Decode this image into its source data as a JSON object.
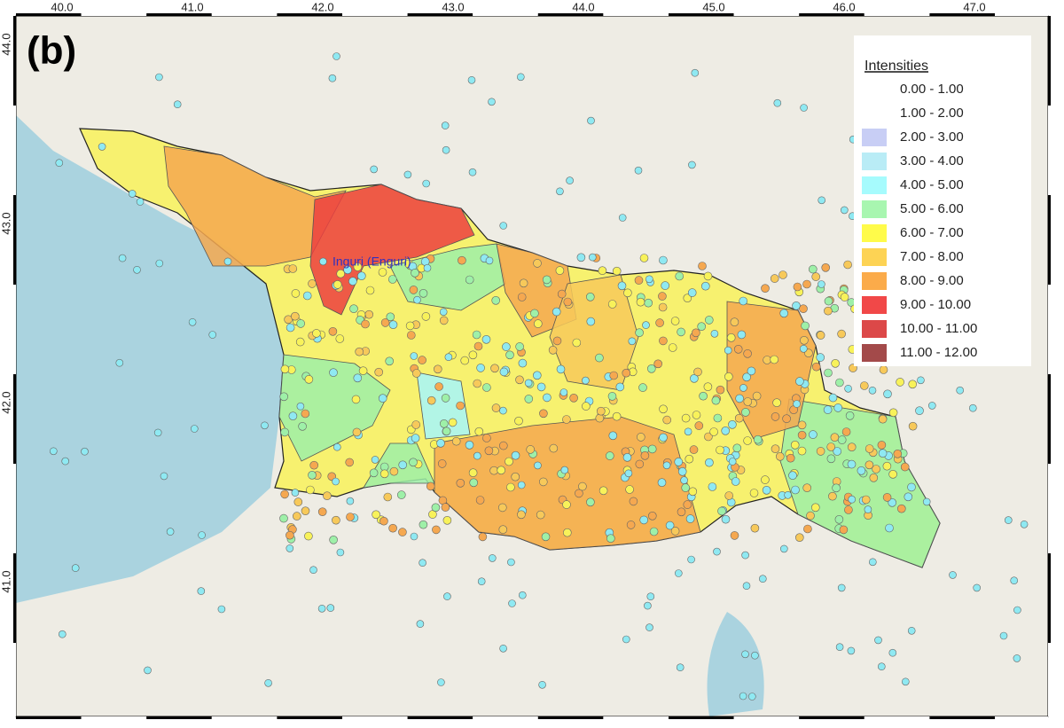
{
  "panel_label": "(b)",
  "place_label": "Inguri (Enguri)",
  "x_ticks": [
    "40.0",
    "41.0",
    "42.0",
    "43.0",
    "44.0",
    "45.0",
    "46.0",
    "47.0"
  ],
  "y_ticks": [
    "44.0",
    "43.0",
    "42.0",
    "41.0"
  ],
  "legend": {
    "title": "Intensities",
    "items": [
      {
        "label": "0.00 - 1.00",
        "color": "#ffffff"
      },
      {
        "label": "1.00 - 2.00",
        "color": "#ffffff"
      },
      {
        "label": "2.00 - 3.00",
        "color": "#c8cef5"
      },
      {
        "label": "3.00 - 4.00",
        "color": "#b9ecf6"
      },
      {
        "label": "4.00 - 5.00",
        "color": "#a6fbfd"
      },
      {
        "label": "5.00 - 6.00",
        "color": "#a8f6b0"
      },
      {
        "label": "6.00 - 7.00",
        "color": "#fffb4a"
      },
      {
        "label": "7.00 - 8.00",
        "color": "#fdd354"
      },
      {
        "label": "8.00 - 9.00",
        "color": "#fbab4a"
      },
      {
        "label": "9.00 - 10.00",
        "color": "#f14848"
      },
      {
        "label": "10.00 - 11.00",
        "color": "#dc4848"
      },
      {
        "label": "11.00 - 12.00",
        "color": "#a34a4a"
      }
    ]
  }
}
